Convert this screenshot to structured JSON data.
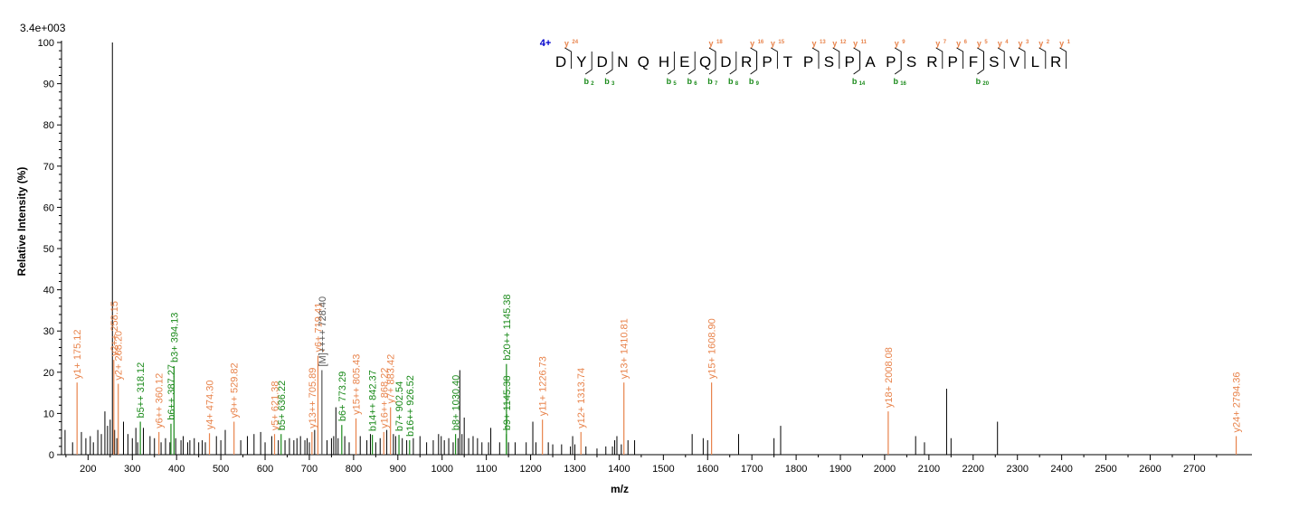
{
  "chart_data": {
    "type": "bar",
    "title": "",
    "scale_label": "3.4e+003",
    "xlabel": "m/z",
    "ylabel": "Relative  Intensity (%)",
    "xlim": [
      140,
      2830
    ],
    "ylim": [
      0,
      100
    ],
    "x_ticks": [
      200,
      300,
      400,
      500,
      600,
      700,
      800,
      900,
      1000,
      1100,
      1200,
      1300,
      1400,
      1500,
      1600,
      1700,
      1800,
      1900,
      2000,
      2100,
      2200,
      2300,
      2400,
      2500,
      2600,
      2700
    ],
    "y_ticks": [
      0,
      10,
      20,
      30,
      40,
      50,
      60,
      70,
      80,
      90,
      100
    ],
    "grid": false,
    "colors": {
      "y_ion": "#e8834b",
      "b_ion": "#1a8a1a",
      "precursor": "#555555",
      "unmatched": "#000000",
      "charge": "#0000cc"
    },
    "annotated_peaks": [
      {
        "mz": 175.12,
        "intensity": 17.5,
        "label": "y1+ 175.12",
        "ion": "y"
      },
      {
        "mz": 258.15,
        "intensity": 23,
        "label": "y2++ 258.15",
        "ion": "y"
      },
      {
        "mz": 268.2,
        "intensity": 17.2,
        "label": "y2+ 268.20",
        "ion": "y"
      },
      {
        "mz": 318.12,
        "intensity": 8,
        "label": "b5++ 318.12",
        "ion": "b"
      },
      {
        "mz": 360.12,
        "intensity": 5.5,
        "label": "y6++ 360.12",
        "ion": "y"
      },
      {
        "mz": 387.27,
        "intensity": 7.5,
        "label": "b6++ 387.27",
        "ion": "b"
      },
      {
        "mz": 394.13,
        "intensity": 21.5,
        "label": "b3+ 394.13",
        "ion": "b"
      },
      {
        "mz": 474.3,
        "intensity": 5.2,
        "label": "y4+ 474.30",
        "ion": "y"
      },
      {
        "mz": 529.82,
        "intensity": 8,
        "label": "y9++ 529.82",
        "ion": "y"
      },
      {
        "mz": 621.38,
        "intensity": 5,
        "label": "y5+ 621.38",
        "ion": "y"
      },
      {
        "mz": 636.22,
        "intensity": 5,
        "label": "b5+ 636.22",
        "ion": "b"
      },
      {
        "mz": 705.89,
        "intensity": 5.5,
        "label": "y13++ 705.89",
        "ion": "y"
      },
      {
        "mz": 719.41,
        "intensity": 24,
        "label": "y6+ 719.41",
        "ion": "y"
      },
      {
        "mz": 728.4,
        "intensity": 20.5,
        "label": "[M]++++ 728.40",
        "ion": "m"
      },
      {
        "mz": 773.29,
        "intensity": 7.2,
        "label": "b6+ 773.29",
        "ion": "b"
      },
      {
        "mz": 805.43,
        "intensity": 8.8,
        "label": "y15++ 805.43",
        "ion": "y"
      },
      {
        "mz": 842.37,
        "intensity": 4.8,
        "label": "b14++ 842.37",
        "ion": "b"
      },
      {
        "mz": 868.22,
        "intensity": 5.5,
        "label": "y16++ 868.22",
        "ion": "y"
      },
      {
        "mz": 883.42,
        "intensity": 11.5,
        "label": "y7+ 883.42",
        "ion": "y"
      },
      {
        "mz": 902.54,
        "intensity": 4.8,
        "label": "b7+ 902.54",
        "ion": "b"
      },
      {
        "mz": 926.52,
        "intensity": 3.5,
        "label": "b16++ 926.52",
        "ion": "b"
      },
      {
        "mz": 1030.4,
        "intensity": 5,
        "label": "b8+ 1030.40",
        "ion": "b"
      },
      {
        "mz": 1145.38,
        "intensity": 5,
        "label": "b9+ 1145.38",
        "ion": "b"
      },
      {
        "mz": 1145.38,
        "intensity": 22,
        "label": "b20++ 1145.38",
        "ion": "b"
      },
      {
        "mz": 1226.73,
        "intensity": 8.5,
        "label": "y11+ 1226.73",
        "ion": "y"
      },
      {
        "mz": 1313.74,
        "intensity": 5.5,
        "label": "y12+ 1313.74",
        "ion": "y"
      },
      {
        "mz": 1410.81,
        "intensity": 17.5,
        "label": "y13+ 1410.81",
        "ion": "y"
      },
      {
        "mz": 1608.9,
        "intensity": 17.5,
        "label": "y15+ 1608.90",
        "ion": "y"
      },
      {
        "mz": 2008.08,
        "intensity": 10.5,
        "label": "y18+ 2008.08",
        "ion": "y"
      },
      {
        "mz": 2794.36,
        "intensity": 4.5,
        "label": "y24+ 2794.36",
        "ion": "y"
      }
    ],
    "unlabeled_peaks": [
      [
        148,
        6
      ],
      [
        165,
        3
      ],
      [
        185,
        5.5
      ],
      [
        195,
        4
      ],
      [
        205,
        4.5
      ],
      [
        212,
        3
      ],
      [
        222,
        6
      ],
      [
        230,
        5
      ],
      [
        238,
        10.5
      ],
      [
        244,
        7
      ],
      [
        250,
        8.5
      ],
      [
        255,
        100
      ],
      [
        260,
        6
      ],
      [
        265,
        4
      ],
      [
        280,
        8
      ],
      [
        290,
        5
      ],
      [
        300,
        4
      ],
      [
        308,
        6.5
      ],
      [
        312,
        3
      ],
      [
        325,
        6.5
      ],
      [
        340,
        4.5
      ],
      [
        350,
        4
      ],
      [
        365,
        3
      ],
      [
        375,
        4
      ],
      [
        385,
        3
      ],
      [
        398,
        4
      ],
      [
        410,
        3.5
      ],
      [
        415,
        4.5
      ],
      [
        425,
        3
      ],
      [
        430,
        3.5
      ],
      [
        440,
        4
      ],
      [
        450,
        3
      ],
      [
        458,
        3.5
      ],
      [
        465,
        3
      ],
      [
        490,
        4.5
      ],
      [
        500,
        3.5
      ],
      [
        510,
        6
      ],
      [
        545,
        3.5
      ],
      [
        560,
        4.5
      ],
      [
        575,
        5
      ],
      [
        590,
        5.5
      ],
      [
        600,
        3
      ],
      [
        615,
        4.5
      ],
      [
        630,
        3.5
      ],
      [
        645,
        3.5
      ],
      [
        655,
        4
      ],
      [
        665,
        3.5
      ],
      [
        672,
        4
      ],
      [
        680,
        4.5
      ],
      [
        690,
        3.5
      ],
      [
        695,
        4
      ],
      [
        700,
        3
      ],
      [
        712,
        6
      ],
      [
        740,
        3.5
      ],
      [
        750,
        4
      ],
      [
        755,
        4.5
      ],
      [
        760,
        11.5
      ],
      [
        765,
        4
      ],
      [
        780,
        4.5
      ],
      [
        790,
        3
      ],
      [
        815,
        4.5
      ],
      [
        830,
        3.5
      ],
      [
        838,
        5
      ],
      [
        850,
        3
      ],
      [
        860,
        4
      ],
      [
        875,
        6
      ],
      [
        890,
        5
      ],
      [
        895,
        4.5
      ],
      [
        910,
        4
      ],
      [
        920,
        3.5
      ],
      [
        935,
        4
      ],
      [
        950,
        4.5
      ],
      [
        965,
        3
      ],
      [
        980,
        3.5
      ],
      [
        992,
        5
      ],
      [
        998,
        4.5
      ],
      [
        1005,
        3.5
      ],
      [
        1015,
        4
      ],
      [
        1025,
        3
      ],
      [
        1036,
        4
      ],
      [
        1040,
        20.5
      ],
      [
        1045,
        5
      ],
      [
        1050,
        9
      ],
      [
        1060,
        4
      ],
      [
        1070,
        4.5
      ],
      [
        1080,
        4
      ],
      [
        1090,
        3
      ],
      [
        1105,
        3
      ],
      [
        1110,
        6.5
      ],
      [
        1130,
        3
      ],
      [
        1150,
        3
      ],
      [
        1165,
        3
      ],
      [
        1190,
        3
      ],
      [
        1205,
        8
      ],
      [
        1212,
        3
      ],
      [
        1240,
        3
      ],
      [
        1250,
        2.5
      ],
      [
        1270,
        2.5
      ],
      [
        1290,
        2
      ],
      [
        1295,
        4.5
      ],
      [
        1300,
        2.5
      ],
      [
        1325,
        2
      ],
      [
        1350,
        1.5
      ],
      [
        1370,
        2
      ],
      [
        1385,
        2
      ],
      [
        1390,
        3.5
      ],
      [
        1395,
        4.5
      ],
      [
        1405,
        2.5
      ],
      [
        1420,
        3.5
      ],
      [
        1435,
        3.5
      ],
      [
        1565,
        5
      ],
      [
        1590,
        4
      ],
      [
        1600,
        3.5
      ],
      [
        1670,
        5
      ],
      [
        1750,
        4
      ],
      [
        1765,
        7
      ],
      [
        2070,
        4.5
      ],
      [
        2090,
        3
      ],
      [
        2140,
        16
      ],
      [
        2150,
        4
      ],
      [
        2255,
        8
      ]
    ],
    "sequence": {
      "charge": "4+",
      "residues": [
        "D",
        "Y",
        "D",
        "N",
        "Q",
        "H",
        "E",
        "Q",
        "D",
        "R",
        "P",
        "T",
        "P",
        "S",
        "P",
        "A",
        "P",
        "S",
        "R",
        "P",
        "F",
        "S",
        "V",
        "L",
        "R"
      ],
      "y_ions": [
        {
          "after": 0,
          "label": "y",
          "num": "24"
        },
        {
          "after": 7,
          "label": "y",
          "num": "18"
        },
        {
          "after": 9,
          "label": "y",
          "num": "16"
        },
        {
          "after": 10,
          "label": "y",
          "num": "15"
        },
        {
          "after": 12,
          "label": "y",
          "num": "13"
        },
        {
          "after": 13,
          "label": "y",
          "num": "12"
        },
        {
          "after": 14,
          "label": "y",
          "num": "11"
        },
        {
          "after": 16,
          "label": "y",
          "num": "9"
        },
        {
          "after": 18,
          "label": "y",
          "num": "7"
        },
        {
          "after": 19,
          "label": "y",
          "num": "6"
        },
        {
          "after": 20,
          "label": "y",
          "num": "5"
        },
        {
          "after": 21,
          "label": "y",
          "num": "4"
        },
        {
          "after": 22,
          "label": "y",
          "num": "3"
        },
        {
          "after": 23,
          "label": "y",
          "num": "2"
        },
        {
          "after": 24,
          "label": "y",
          "num": "1"
        }
      ],
      "b_ions": [
        {
          "after": 1,
          "label": "b",
          "num": "2"
        },
        {
          "after": 2,
          "label": "b",
          "num": "3"
        },
        {
          "after": 5,
          "label": "b",
          "num": "5"
        },
        {
          "after": 6,
          "label": "b",
          "num": "6"
        },
        {
          "after": 7,
          "label": "b",
          "num": "7"
        },
        {
          "after": 8,
          "label": "b",
          "num": "8"
        },
        {
          "after": 9,
          "label": "b",
          "num": "9"
        },
        {
          "after": 14,
          "label": "b",
          "num": "14"
        },
        {
          "after": 16,
          "label": "b",
          "num": "16"
        },
        {
          "after": 20,
          "label": "b",
          "num": "20"
        }
      ]
    }
  }
}
